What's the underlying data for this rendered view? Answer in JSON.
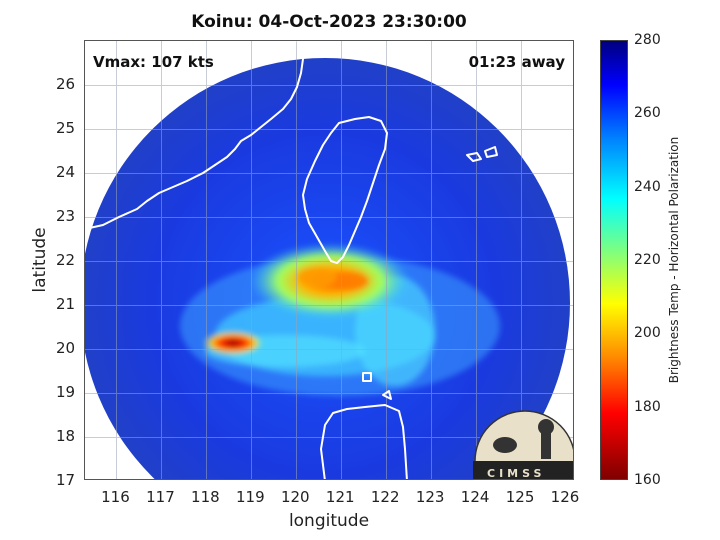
{
  "title": "Koinu: 04-Oct-2023 23:30:00",
  "vmax": "Vmax: 107 kts",
  "time_away": "01:23 away",
  "xlabel": "longitude",
  "ylabel": "latitude",
  "colorbar_label": "Brightness Temp - Horizontal Polarization",
  "logo_text": "CIMSS",
  "chart_data": {
    "type": "heatmap",
    "title": "Koinu: 04-Oct-2023 23:30:00",
    "xlabel": "longitude",
    "ylabel": "latitude",
    "xlim": [
      115.3,
      126.2
    ],
    "ylim": [
      17,
      27
    ],
    "x_ticks": [
      116,
      117,
      118,
      119,
      120,
      121,
      122,
      123,
      124,
      125,
      126
    ],
    "y_ticks": [
      17,
      18,
      19,
      20,
      21,
      22,
      23,
      24,
      25,
      26
    ],
    "colorbar": {
      "label": "Brightness Temp - Horizontal Polarization",
      "range": [
        160,
        280
      ],
      "ticks": [
        160,
        180,
        200,
        220,
        240,
        260,
        280
      ],
      "colormap": "jet"
    },
    "grid": true,
    "features": [
      {
        "lon": 120.8,
        "lat": 21.6,
        "value": 195
      },
      {
        "lon": 118.4,
        "lat": 20.1,
        "value": 170
      }
    ]
  },
  "colors": {
    "background": "#ffffff",
    "ocean": "#1a3fd0",
    "coast": "#ffffff"
  }
}
